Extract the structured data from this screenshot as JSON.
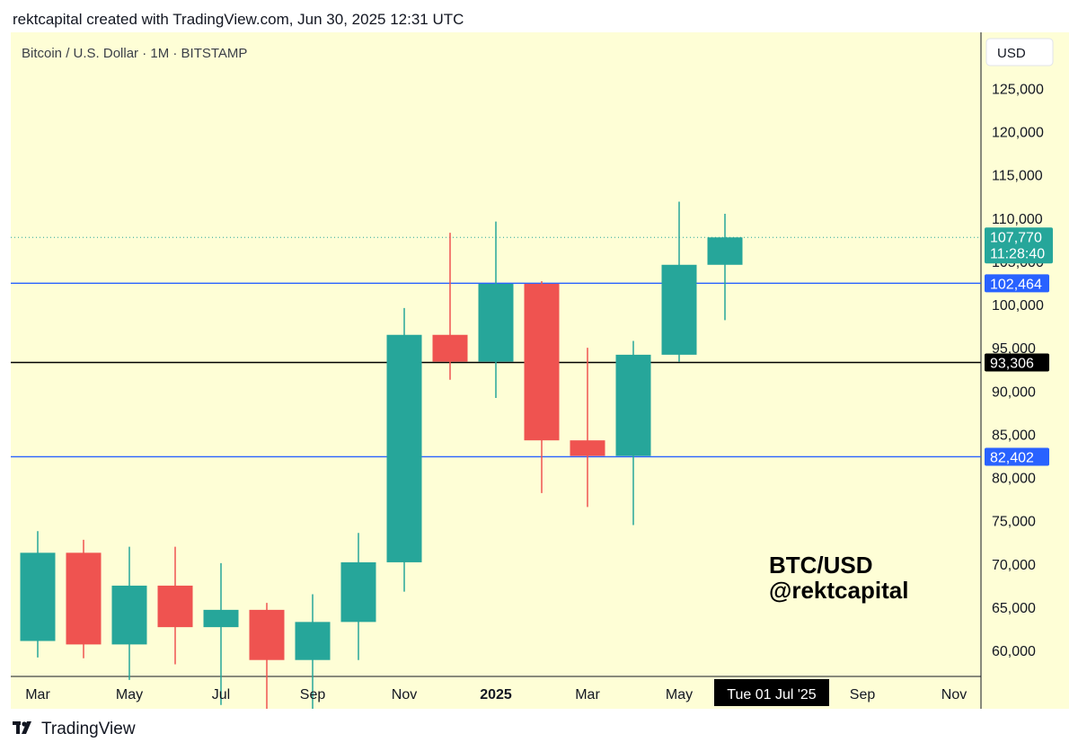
{
  "caption": "rektcapital created with TradingView.com, Jun 30, 2025 12:31 UTC",
  "footer": {
    "brand": "TradingView",
    "logo_icon": "tradingview-logo-icon"
  },
  "colors": {
    "background": "#fefed6",
    "up": "#26a69a",
    "down": "#ef5350",
    "support_line": "#2962ff",
    "level_line": "#000000",
    "axis_text": "#131722"
  },
  "chart_data": {
    "type": "candlestick",
    "title": "Bitcoin / U.S. Dollar · 1M · BITSTAMP",
    "currency_button": "USD",
    "watermark": [
      "BTC/USD",
      "@rektcapital"
    ],
    "grid": false,
    "ylim": [
      57000,
      132000
    ],
    "y_ticks": [
      60000,
      65000,
      70000,
      75000,
      80000,
      85000,
      90000,
      95000,
      100000,
      105000,
      110000,
      115000,
      120000,
      125000
    ],
    "y_tick_labels": [
      "60,000",
      "65,000",
      "70,000",
      "75,000",
      "80,000",
      "85,000",
      "90,000",
      "95,000",
      "100,000",
      "105,000",
      "110,000",
      "115,000",
      "120,000",
      "125,000"
    ],
    "x_ticks": [
      {
        "label": "Mar",
        "index": 0,
        "bold": false
      },
      {
        "label": "May",
        "index": 2,
        "bold": false
      },
      {
        "label": "Jul",
        "index": 4,
        "bold": false
      },
      {
        "label": "Sep",
        "index": 6,
        "bold": false
      },
      {
        "label": "Nov",
        "index": 8,
        "bold": false
      },
      {
        "label": "2025",
        "index": 10,
        "bold": true
      },
      {
        "label": "Mar",
        "index": 12,
        "bold": false
      },
      {
        "label": "May",
        "index": 14,
        "bold": false
      },
      {
        "label": "Sep",
        "index": 18,
        "bold": false
      },
      {
        "label": "Nov",
        "index": 20,
        "bold": false
      }
    ],
    "x_cursor": {
      "label": "Tue 01 Jul '25",
      "index": 16
    },
    "candles": [
      {
        "month": "2024-03",
        "open": 61100,
        "high": 73800,
        "low": 59200,
        "close": 71300
      },
      {
        "month": "2024-04",
        "open": 71300,
        "high": 72800,
        "low": 59100,
        "close": 60700
      },
      {
        "month": "2024-05",
        "open": 60700,
        "high": 72000,
        "low": 56600,
        "close": 67500
      },
      {
        "month": "2024-06",
        "open": 67500,
        "high": 72000,
        "low": 58400,
        "close": 62700
      },
      {
        "month": "2024-07",
        "open": 62700,
        "high": 70100,
        "low": 53700,
        "close": 64700
      },
      {
        "month": "2024-08",
        "open": 64700,
        "high": 65500,
        "low": 49000,
        "close": 58900
      },
      {
        "month": "2024-09",
        "open": 58900,
        "high": 66500,
        "low": 52500,
        "close": 63300
      },
      {
        "month": "2024-10",
        "open": 63300,
        "high": 73600,
        "low": 58900,
        "close": 70200
      },
      {
        "month": "2024-11",
        "open": 70200,
        "high": 99600,
        "low": 66800,
        "close": 96500
      },
      {
        "month": "2024-12",
        "open": 96500,
        "high": 108300,
        "low": 91300,
        "close": 93400
      },
      {
        "month": "2025-01",
        "open": 93400,
        "high": 109600,
        "low": 89200,
        "close": 102400
      },
      {
        "month": "2025-02",
        "open": 102400,
        "high": 102700,
        "low": 78200,
        "close": 84300
      },
      {
        "month": "2025-03",
        "open": 84300,
        "high": 95000,
        "low": 76600,
        "close": 82500
      },
      {
        "month": "2025-04",
        "open": 82500,
        "high": 95800,
        "low": 74500,
        "close": 94200
      },
      {
        "month": "2025-05",
        "open": 94200,
        "high": 111900,
        "low": 93400,
        "close": 104600
      },
      {
        "month": "2025-06",
        "open": 104600,
        "high": 110500,
        "low": 98200,
        "close": 107770
      }
    ],
    "horizontal_levels": [
      {
        "value": 102464,
        "label": "102,464",
        "color": "#2962ff",
        "label_bg": "#2962ff",
        "label_fg": "#ffffff"
      },
      {
        "value": 93306,
        "label": "93,306",
        "color": "#000000",
        "label_bg": "#000000",
        "label_fg": "#ffffff"
      },
      {
        "value": 82402,
        "label": "82,402",
        "color": "#2962ff",
        "label_bg": "#2962ff",
        "label_fg": "#ffffff"
      }
    ],
    "last_price": {
      "value": 107770,
      "label": "107,770",
      "countdown": "11:28:40",
      "color": "#26a69a"
    }
  }
}
